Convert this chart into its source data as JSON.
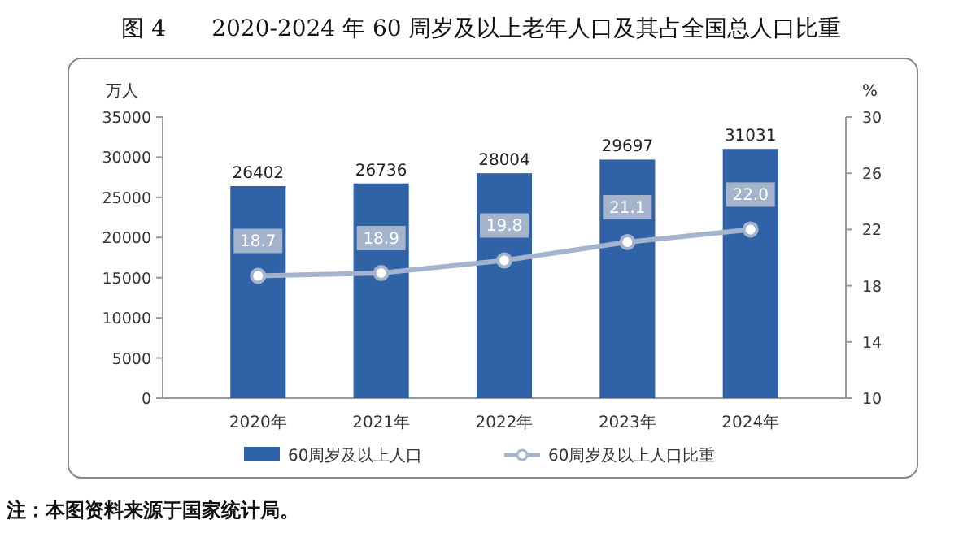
{
  "chart_data": {
    "type": "bar",
    "title": "图 4　　2020-2024 年 60 周岁及以上老年人口及其占全国总人口比重",
    "ylabel": "万人",
    "y2label": "%",
    "categories": [
      "2020年",
      "2021年",
      "2022年",
      "2023年",
      "2024年"
    ],
    "series": [
      {
        "name": "60周岁及以上人口",
        "color": "#2f62a6",
        "values": [
          26402,
          26736,
          28004,
          29697,
          31031
        ]
      },
      {
        "name": "60周岁及以上人口比重",
        "type": "line",
        "axis": "y2",
        "color": "#a3b4cc",
        "marker": "circle",
        "values": [
          18.7,
          18.9,
          19.8,
          21.1,
          22.0
        ],
        "value_labels": [
          "18.7",
          "18.9",
          "19.8",
          "21.1",
          "22.0"
        ]
      }
    ],
    "ylim": [
      0,
      35000
    ],
    "yticks": [
      0,
      5000,
      10000,
      15000,
      20000,
      25000,
      30000,
      35000
    ],
    "y2lim": [
      10,
      30
    ],
    "y2ticks": [
      10,
      14,
      18,
      22,
      26,
      30
    ],
    "data_labels": true,
    "legend": "bottom",
    "grid": false,
    "annotations": [
      "注：本图资料来源于国家统计局。"
    ]
  }
}
